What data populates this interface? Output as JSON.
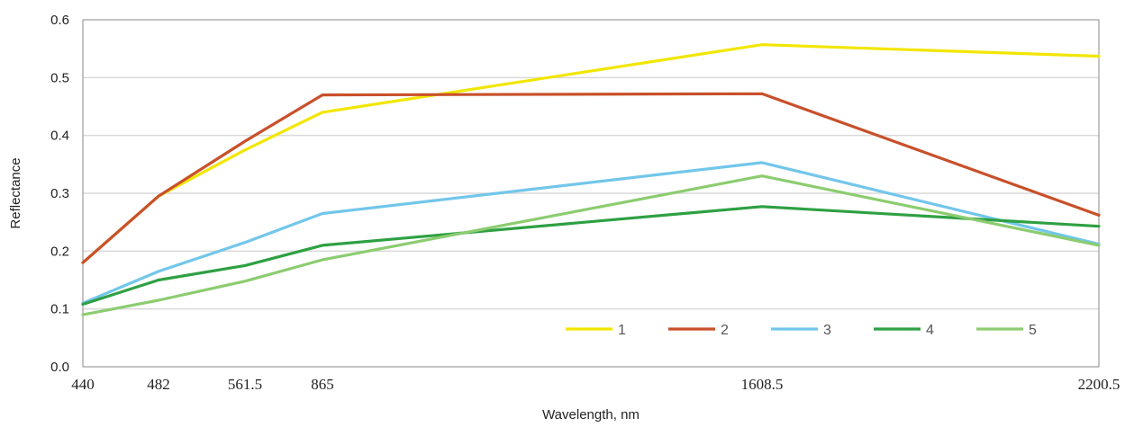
{
  "chart_data": {
    "type": "line",
    "xlabel": "Wavelength, nm",
    "ylabel": "Reflectance",
    "ylim": [
      0,
      0.6
    ],
    "y_ticks": [
      "0.0",
      "0.1",
      "0.2",
      "0.3",
      "0.4",
      "0.5",
      "0.6"
    ],
    "x_ticks": [
      "440",
      "482",
      "561.5",
      "865",
      "1608.5",
      "2200.5"
    ],
    "grid": true,
    "legend_position": "bottom-right",
    "series": [
      {
        "name": "1",
        "color": "#f2e600",
        "x": [
          440,
          482,
          561.5,
          865,
          1608.5,
          2200.5
        ],
        "y": [
          0.18,
          0.295,
          0.375,
          0.44,
          0.557,
          0.537
        ]
      },
      {
        "name": "2",
        "color": "#c8502a",
        "x": [
          440,
          482,
          561.5,
          865,
          1608.5,
          2200.5
        ],
        "y": [
          0.18,
          0.295,
          0.39,
          0.47,
          0.472,
          0.262
        ]
      },
      {
        "name": "3",
        "color": "#72c6ea",
        "x": [
          440,
          482,
          561.5,
          865,
          1608.5,
          2200.5
        ],
        "y": [
          0.11,
          0.165,
          0.215,
          0.265,
          0.353,
          0.212
        ]
      },
      {
        "name": "4",
        "color": "#2ea043",
        "x": [
          440,
          482,
          561.5,
          865,
          1608.5,
          2200.5
        ],
        "y": [
          0.108,
          0.15,
          0.175,
          0.21,
          0.277,
          0.243
        ]
      },
      {
        "name": "5",
        "color": "#8ccc70",
        "x": [
          440,
          482,
          561.5,
          865,
          1608.5,
          2200.5
        ],
        "y": [
          0.09,
          0.115,
          0.148,
          0.185,
          0.33,
          0.21
        ]
      }
    ]
  }
}
